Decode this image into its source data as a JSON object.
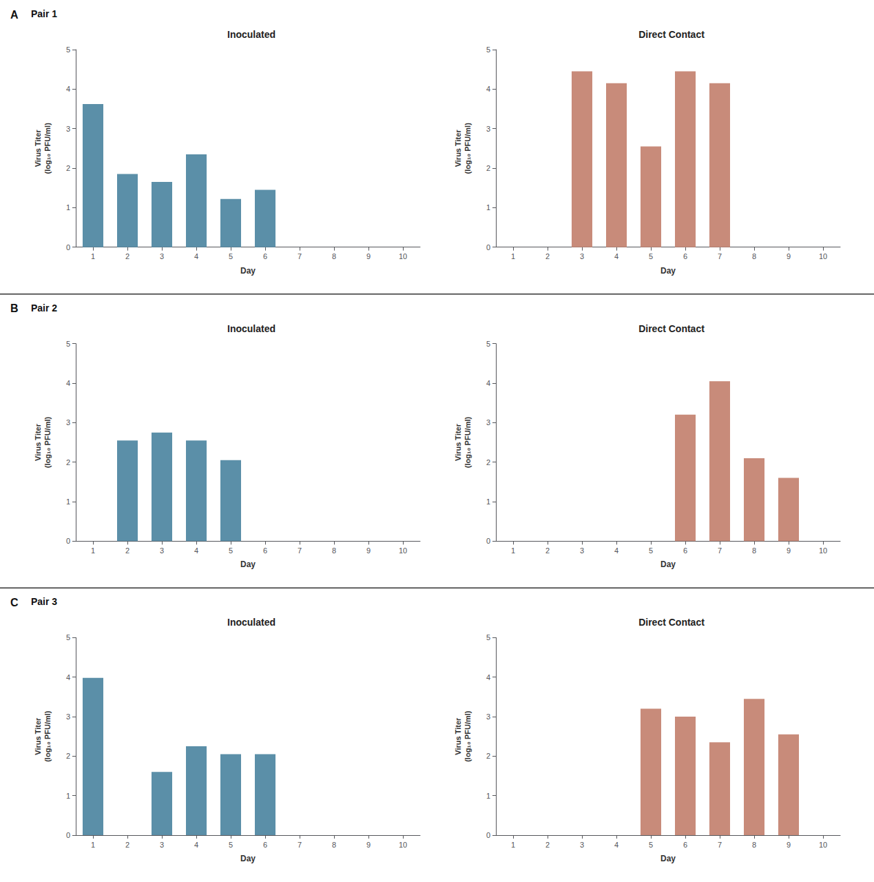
{
  "chart_data": [
    {
      "type": "bar",
      "title": "Inoculated",
      "annotations": [
        "A",
        "Pair 1"
      ],
      "x": [
        1,
        2,
        3,
        4,
        5,
        6
      ],
      "values": [
        3.62,
        1.85,
        1.65,
        2.35,
        1.22,
        1.45
      ],
      "color": "#5b8fa8",
      "xlabel": "Day",
      "ylabel": "Virus Titer\n(log₁₀ PFU/ml)",
      "xlim": [
        0.5,
        10.5
      ],
      "xticks": [
        1,
        2,
        3,
        4,
        5,
        6,
        7,
        8,
        9,
        10
      ],
      "ylim": [
        0,
        5
      ],
      "yticks": [
        0,
        1,
        2,
        3,
        4,
        5
      ],
      "grid": false
    },
    {
      "type": "bar",
      "title": "Direct Contact",
      "x": [
        3,
        4,
        5,
        6,
        7
      ],
      "values": [
        4.45,
        4.15,
        2.55,
        4.45,
        4.15
      ],
      "color": "#c88b7a",
      "xlabel": "Day",
      "ylabel": "Virus Titer\n(log₁₀ PFU/ml)",
      "xlim": [
        0.5,
        10.5
      ],
      "xticks": [
        1,
        2,
        3,
        4,
        5,
        6,
        7,
        8,
        9,
        10
      ],
      "ylim": [
        0,
        5
      ],
      "yticks": [
        0,
        1,
        2,
        3,
        4,
        5
      ],
      "grid": false
    },
    {
      "type": "bar",
      "title": "Inoculated",
      "annotations": [
        "B",
        "Pair 2"
      ],
      "x": [
        2,
        3,
        4,
        5
      ],
      "values": [
        2.55,
        2.75,
        2.55,
        2.05
      ],
      "color": "#5b8fa8",
      "xlabel": "Day",
      "ylabel": "Virus Titer\n(log₁₀ PFU/ml)",
      "xlim": [
        0.5,
        10.5
      ],
      "xticks": [
        1,
        2,
        3,
        4,
        5,
        6,
        7,
        8,
        9,
        10
      ],
      "ylim": [
        0,
        5
      ],
      "yticks": [
        0,
        1,
        2,
        3,
        4,
        5
      ],
      "grid": false
    },
    {
      "type": "bar",
      "title": "Direct Contact",
      "x": [
        6,
        7,
        8,
        9
      ],
      "values": [
        3.2,
        4.05,
        2.1,
        1.6
      ],
      "color": "#c88b7a",
      "xlabel": "Day",
      "ylabel": "Virus Titer\n(log₁₀ PFU/ml)",
      "xlim": [
        0.5,
        10.5
      ],
      "xticks": [
        1,
        2,
        3,
        4,
        5,
        6,
        7,
        8,
        9,
        10
      ],
      "ylim": [
        0,
        5
      ],
      "yticks": [
        0,
        1,
        2,
        3,
        4,
        5
      ],
      "grid": false
    },
    {
      "type": "bar",
      "title": "Inoculated",
      "annotations": [
        "C",
        "Pair 3"
      ],
      "x": [
        1,
        3,
        4,
        5,
        6
      ],
      "values": [
        3.98,
        1.6,
        2.25,
        2.05,
        2.05
      ],
      "color": "#5b8fa8",
      "xlabel": "Day",
      "ylabel": "Virus Titer\n(log₁₀ PFU/ml)",
      "xlim": [
        0.5,
        10.5
      ],
      "xticks": [
        1,
        2,
        3,
        4,
        5,
        6,
        7,
        8,
        9,
        10
      ],
      "ylim": [
        0,
        5
      ],
      "yticks": [
        0,
        1,
        2,
        3,
        4,
        5
      ],
      "grid": false
    },
    {
      "type": "bar",
      "title": "Direct Contact",
      "x": [
        5,
        6,
        7,
        8,
        9
      ],
      "values": [
        3.2,
        3.0,
        2.35,
        3.45,
        2.55
      ],
      "color": "#c88b7a",
      "xlabel": "Day",
      "ylabel": "Virus Titer\n(log₁₀ PFU/ml)",
      "xlim": [
        0.5,
        10.5
      ],
      "xticks": [
        1,
        2,
        3,
        4,
        5,
        6,
        7,
        8,
        9,
        10
      ],
      "ylim": [
        0,
        5
      ],
      "yticks": [
        0,
        1,
        2,
        3,
        4,
        5
      ],
      "grid": false
    }
  ]
}
